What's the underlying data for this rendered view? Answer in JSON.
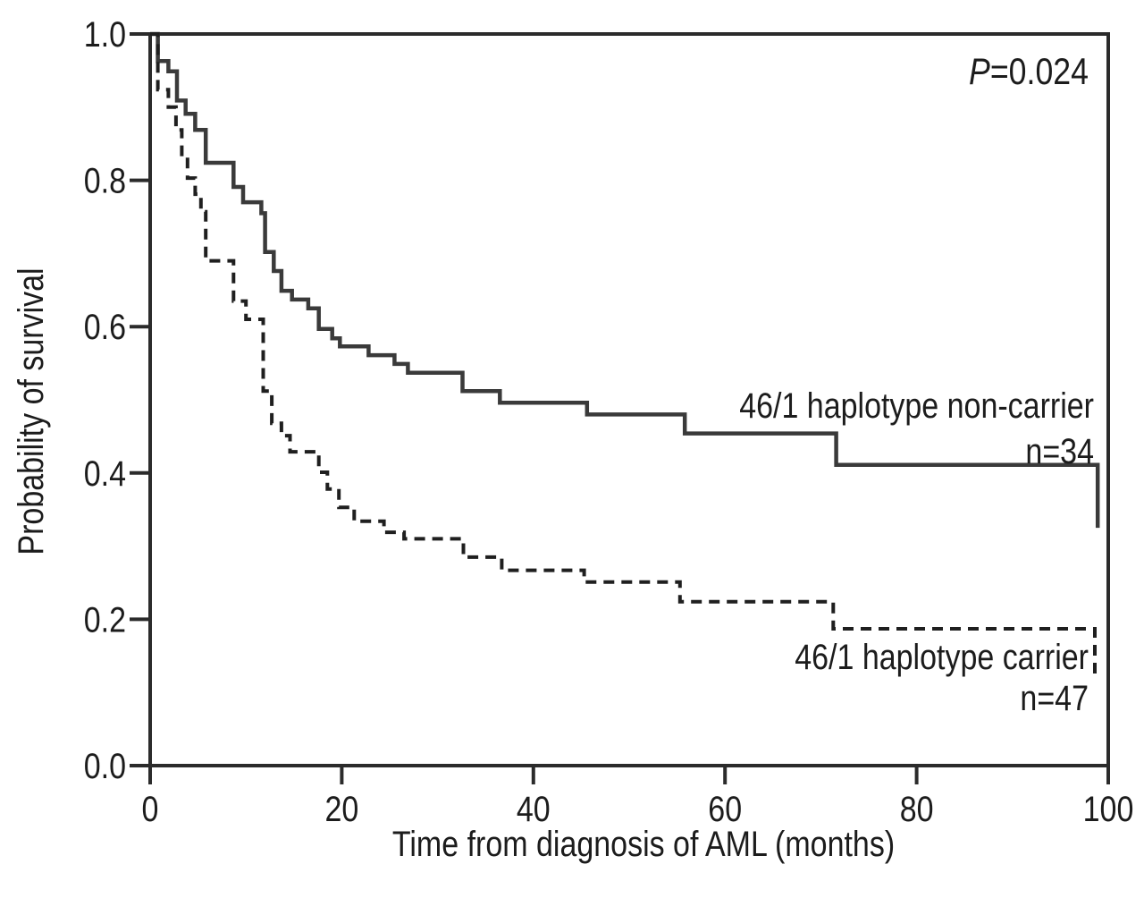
{
  "chart_data": {
    "type": "line",
    "subtype": "kaplan-meier-step",
    "xlabel": "Time from diagnosis of AML (months)",
    "ylabel": "Probability of survival",
    "xlim": [
      0,
      100
    ],
    "ylim": [
      0.0,
      1.0
    ],
    "grid": false,
    "legend_position": "inline-right",
    "xticks": [
      {
        "value": 0,
        "label": "0"
      },
      {
        "value": 20,
        "label": "20"
      },
      {
        "value": 40,
        "label": "40"
      },
      {
        "value": 60,
        "label": "60"
      },
      {
        "value": 80,
        "label": "80"
      },
      {
        "value": 100,
        "label": "100"
      }
    ],
    "yticks": [
      {
        "value": 0.0,
        "label": "0.0"
      },
      {
        "value": 0.2,
        "label": "0.2"
      },
      {
        "value": 0.4,
        "label": "0.4"
      },
      {
        "value": 0.6,
        "label": "0.6"
      },
      {
        "value": 0.8,
        "label": "0.8"
      },
      {
        "value": 1.0,
        "label": "1.0"
      }
    ],
    "annotation": {
      "p_prefix": "P",
      "p_rest": "=0.024"
    },
    "series": [
      {
        "name": "46/1 haplotype non-carrier",
        "n_label": "n=34",
        "style": "solid",
        "color": "#3a3a3a",
        "points": [
          [
            0,
            1.0
          ],
          [
            0.8,
            0.963
          ],
          [
            1.9,
            0.949
          ],
          [
            2.8,
            0.909
          ],
          [
            3.7,
            0.891
          ],
          [
            4.7,
            0.869
          ],
          [
            5.8,
            0.824
          ],
          [
            8.7,
            0.791
          ],
          [
            9.7,
            0.77
          ],
          [
            11.6,
            0.755
          ],
          [
            12.0,
            0.702
          ],
          [
            12.9,
            0.676
          ],
          [
            13.7,
            0.649
          ],
          [
            14.8,
            0.637
          ],
          [
            16.5,
            0.625
          ],
          [
            17.6,
            0.597
          ],
          [
            19.0,
            0.584
          ],
          [
            19.8,
            0.573
          ],
          [
            22.8,
            0.561
          ],
          [
            25.5,
            0.549
          ],
          [
            26.9,
            0.537
          ],
          [
            32.6,
            0.512
          ],
          [
            36.5,
            0.496
          ],
          [
            45.6,
            0.48
          ],
          [
            55.8,
            0.454
          ],
          [
            71.6,
            0.411
          ],
          [
            98.9,
            0.325
          ]
        ]
      },
      {
        "name": "46/1 haplotype carrier",
        "n_label": "n=47",
        "style": "dashed",
        "color": "#1f1f1f",
        "points": [
          [
            0,
            1.0
          ],
          [
            0.8,
            0.924
          ],
          [
            1.9,
            0.9
          ],
          [
            2.7,
            0.869
          ],
          [
            3.3,
            0.833
          ],
          [
            3.9,
            0.803
          ],
          [
            4.7,
            0.781
          ],
          [
            5.3,
            0.757
          ],
          [
            5.8,
            0.69
          ],
          [
            8.7,
            0.635
          ],
          [
            10.0,
            0.61
          ],
          [
            11.8,
            0.512
          ],
          [
            12.7,
            0.468
          ],
          [
            13.7,
            0.451
          ],
          [
            14.6,
            0.429
          ],
          [
            17.6,
            0.401
          ],
          [
            18.5,
            0.378
          ],
          [
            19.7,
            0.353
          ],
          [
            21.3,
            0.334
          ],
          [
            24.4,
            0.319
          ],
          [
            26.5,
            0.31
          ],
          [
            32.7,
            0.285
          ],
          [
            36.7,
            0.267
          ],
          [
            45.3,
            0.251
          ],
          [
            55.3,
            0.224
          ],
          [
            71.3,
            0.187
          ],
          [
            98.6,
            0.123
          ]
        ]
      }
    ]
  }
}
